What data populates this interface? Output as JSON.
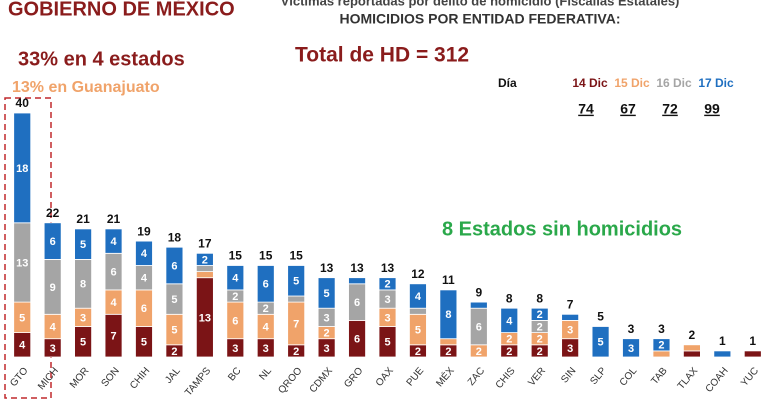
{
  "chart_data": {
    "type": "stacked_bar",
    "logo": "GOBIERNO DE MÉXICO",
    "title": "Víctimas reportadas por delito de homicidio (Fiscalías Estatales)",
    "subtitle": "HOMICIDIOS POR ENTIDAD FEDERATIVA:",
    "annotations": [
      "33% en 4 estados",
      "13% en Guanajuato",
      "Total de HD = 312",
      "8 Estados sin homicidios"
    ],
    "legend_title": "Día",
    "categories": [
      "GTO",
      "MICH",
      "MOR",
      "SON",
      "CHIH",
      "JAL",
      "TAMPS",
      "BC",
      "NL",
      "QROO",
      "CDMX",
      "GRO",
      "OAX",
      "PUE",
      "MÉX",
      "ZAC",
      "CHIS",
      "VER",
      "SIN",
      "SLP",
      "COL",
      "TAB",
      "TLAX",
      "COAH",
      "YUC"
    ],
    "totals": [
      40,
      22,
      21,
      21,
      19,
      18,
      17,
      15,
      15,
      15,
      13,
      13,
      13,
      12,
      11,
      9,
      8,
      8,
      7,
      5,
      3,
      3,
      2,
      1,
      1
    ],
    "series": [
      {
        "name": "14 Dic",
        "color": "#7b1416",
        "total": 74,
        "values": [
          4,
          3,
          5,
          7,
          5,
          2,
          13,
          3,
          3,
          2,
          3,
          6,
          5,
          2,
          2,
          0,
          2,
          2,
          3,
          0,
          0,
          0,
          1,
          0,
          1
        ]
      },
      {
        "name": "15 Dic",
        "color": "#f0a36a",
        "total": 67,
        "values": [
          5,
          4,
          3,
          4,
          6,
          5,
          1,
          6,
          4,
          7,
          2,
          0,
          3,
          5,
          1,
          2,
          2,
          2,
          3,
          0,
          0,
          1,
          1,
          0,
          0
        ]
      },
      {
        "name": "16 Dic",
        "color": "#a5a5a5",
        "total": 72,
        "values": [
          13,
          9,
          8,
          6,
          4,
          5,
          1,
          2,
          2,
          1,
          3,
          6,
          3,
          1,
          0,
          6,
          0,
          2,
          0,
          0,
          0,
          0,
          0,
          0,
          0
        ]
      },
      {
        "name": "17 Dic",
        "color": "#1f6fc0",
        "total": 99,
        "values": [
          18,
          6,
          5,
          4,
          4,
          6,
          2,
          4,
          6,
          5,
          5,
          1,
          2,
          4,
          8,
          1,
          4,
          2,
          1,
          5,
          3,
          2,
          0,
          1,
          0
        ]
      }
    ],
    "ylim": [
      0,
      40
    ]
  }
}
